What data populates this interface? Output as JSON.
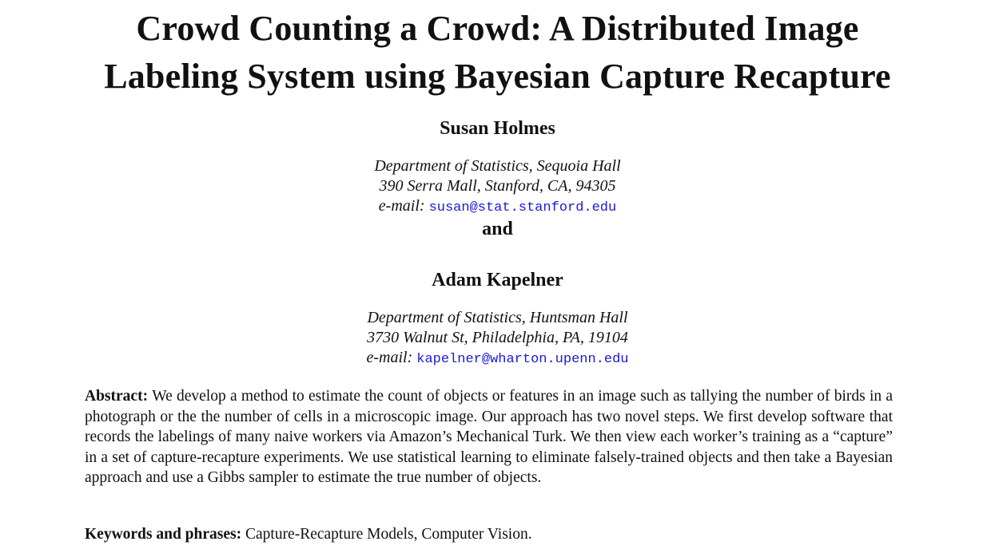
{
  "title_line1": "Crowd Counting a Crowd: A Distributed Image",
  "title_line2": "Labeling System using Bayesian Capture Recapture",
  "authors": [
    {
      "name": "Susan Holmes",
      "affil_line1": "Department of Statistics, Sequoia Hall",
      "affil_line2": "390 Serra Mall, Stanford, CA, 94305",
      "email_label": "e-mail:",
      "email": "susan@stat.stanford.edu"
    },
    {
      "name": "Adam Kapelner",
      "affil_line1": "Department of Statistics, Huntsman Hall",
      "affil_line2": "3730 Walnut St, Philadelphia, PA, 19104",
      "email_label": "e-mail:",
      "email": "kapelner@wharton.upenn.edu"
    }
  ],
  "and_text": "and",
  "abstract": {
    "label": "Abstract:",
    "text": "We develop a method to estimate the count of objects or features in an image such as tallying the number of birds in a photograph or the the number of cells in a microscopic image. Our approach has two novel steps. We first develop software that records the labelings of many naive workers via Amazon’s Mechanical Turk. We then view each worker’s training as a “capture” in a set of capture-recapture experiments. We use statistical learning to eliminate falsely-trained objects and then take a Bayesian approach and use a Gibbs sampler to estimate the true number of objects."
  },
  "keywords": {
    "label": "Keywords and phrases:",
    "text": "Capture-Recapture Models, Computer Vision."
  },
  "colors": {
    "link": "#1a1ad6",
    "text": "#111111",
    "background": "#ffffff"
  }
}
